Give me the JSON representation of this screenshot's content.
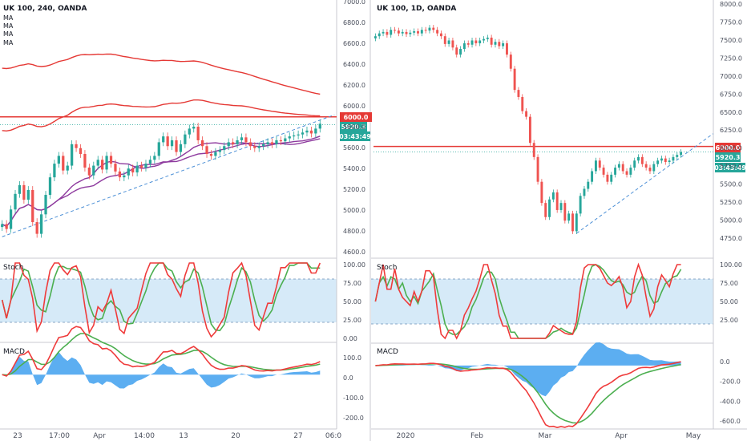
{
  "colors": {
    "up": "#26a69a",
    "down": "#ef5350",
    "stoch_k": "#ef3b3b",
    "stoch_d": "#4caf50",
    "band": "#d6eaf8",
    "hline": "#e53935",
    "trend": "#4b8fd6",
    "macd_pos": "#3fa0ef",
    "ma_red": "#e53935",
    "ma_purple": "#8e3a9e",
    "price_label": "#e53935",
    "current_label": "#26a69a"
  },
  "left": {
    "title": "UK 100, 240, OANDA",
    "ma_labels": [
      "MA",
      "MA",
      "MA",
      "MA"
    ],
    "stoch_title": "Stoch",
    "macd_title": "MACD",
    "labels": {
      "hline": "6000.0",
      "price": "5920.3",
      "timer": "03:43:49"
    },
    "x_ticks": [
      "23",
      "17:00",
      "Apr",
      "14:00",
      "13",
      "20",
      "27",
      "06:0"
    ],
    "y_ticks_price": [
      "7000.0",
      "6800.0",
      "6600.0",
      "6400.0",
      "6200.0",
      "6000.0",
      "5800.0",
      "5600.0",
      "5400.0",
      "5200.0",
      "5000.0",
      "4800.0",
      "4600.0"
    ],
    "y_ticks_stoch": [
      "100.00",
      "75.00",
      "50.00",
      "25.00",
      "0.00"
    ],
    "y_ticks_macd": [
      "100.0",
      "0.0",
      "-100.0",
      "-200.0"
    ]
  },
  "right": {
    "title": "UK 100, 1D, OANDA",
    "stoch_title": "Stoch",
    "macd_title": "MACD",
    "labels": {
      "hline": "6000.0",
      "price": "5920.3",
      "timer": "03:43:49"
    },
    "x_ticks": [
      "2020",
      "Feb",
      "Mar",
      "Apr",
      "May"
    ],
    "y_ticks_price": [
      "8000.0",
      "7750.0",
      "7500.0",
      "7250.0",
      "7000.0",
      "6750.0",
      "6500.0",
      "6250.0",
      "6000.0",
      "5750.0",
      "5500.0",
      "5250.0",
      "5000.0",
      "4750.0"
    ],
    "y_ticks_stoch": [
      "100.00",
      "75.00",
      "50.00",
      "25.00"
    ],
    "y_ticks_macd": [
      "0.0",
      "-200.0",
      "-400.0",
      "-600.0"
    ]
  },
  "chart_data": [
    {
      "type": "candlestick",
      "title": "UK 100, 240, OANDA",
      "ylim": [
        4550,
        7200
      ],
      "hline": 6000,
      "last": 5920.3,
      "trendline": [
        [
          0,
          4770
        ],
        [
          73,
          5940
        ]
      ],
      "close": [
        4900,
        4850,
        5050,
        5210,
        5300,
        5150,
        5250,
        4920,
        4800,
        5000,
        5200,
        5380,
        5520,
        5600,
        5450,
        5500,
        5720,
        5680,
        5620,
        5480,
        5400,
        5500,
        5560,
        5460,
        5600,
        5520,
        5440,
        5380,
        5400,
        5470,
        5430,
        5500,
        5480,
        5520,
        5560,
        5600,
        5740,
        5800,
        5700,
        5760,
        5640,
        5720,
        5820,
        5880,
        5900,
        5760,
        5700,
        5620,
        5600,
        5640,
        5660,
        5700,
        5740,
        5720,
        5760,
        5790,
        5740,
        5700,
        5680,
        5700,
        5720,
        5740,
        5720,
        5760,
        5750,
        5780,
        5800,
        5810,
        5820,
        5840,
        5860,
        5830,
        5880,
        5930
      ]
    },
    {
      "type": "candlestick",
      "title": "UK 100, 1D, OANDA",
      "ylim": [
        4600,
        8050
      ],
      "hline": 6000,
      "last": 5920.3,
      "trendline": [
        [
          52,
          4770
        ],
        [
          79,
          5930
        ]
      ],
      "close": [
        7560,
        7600,
        7620,
        7580,
        7650,
        7640,
        7600,
        7620,
        7590,
        7610,
        7630,
        7600,
        7650,
        7640,
        7680,
        7650,
        7600,
        7560,
        7450,
        7500,
        7400,
        7300,
        7380,
        7460,
        7440,
        7500,
        7460,
        7500,
        7520,
        7540,
        7440,
        7480,
        7420,
        7460,
        7300,
        7100,
        6800,
        6700,
        6500,
        6420,
        6050,
        5850,
        5500,
        5200,
        5000,
        5250,
        5350,
        5100,
        5200,
        4950,
        5050,
        4800,
        5050,
        5300,
        5400,
        5500,
        5650,
        5800,
        5700,
        5600,
        5500,
        5600,
        5700,
        5750,
        5650,
        5600,
        5700,
        5800,
        5850,
        5750,
        5700,
        5650,
        5750,
        5800,
        5830,
        5780,
        5800,
        5850,
        5880,
        5920
      ]
    }
  ]
}
